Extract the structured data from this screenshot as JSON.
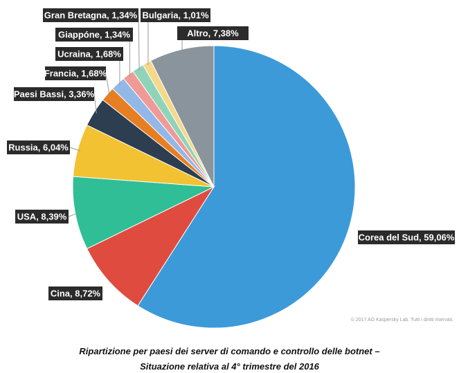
{
  "chart_data": {
    "type": "pie",
    "title": "",
    "start_angle_deg": 0,
    "direction": "clockwise",
    "slices": [
      {
        "label": "Corea del Sud, 59,06%",
        "value": 59.06,
        "color": "#3d9ad9"
      },
      {
        "label": "Cina, 8,72%",
        "value": 8.72,
        "color": "#e04b3f"
      },
      {
        "label": "USA, 8,39%",
        "value": 8.39,
        "color": "#2fbe96"
      },
      {
        "label": "Russia, 6,04%",
        "value": 6.04,
        "color": "#f2c232"
      },
      {
        "label": "Paesi Bassi, 3,36%",
        "value": 3.36,
        "color": "#2c3e50"
      },
      {
        "label": "Francia, 1,68%",
        "value": 1.68,
        "color": "#e67e22"
      },
      {
        "label": "Ucraina, 1,68%",
        "value": 1.68,
        "color": "#93b8e8"
      },
      {
        "label": "Giappóne, 1,34%",
        "value": 1.34,
        "color": "#ef9a96"
      },
      {
        "label": "Gran Bretagna, 1,34%",
        "value": 1.34,
        "color": "#8fd4b8"
      },
      {
        "label": "Bulgaria, 1,01%",
        "value": 1.01,
        "color": "#f5d88a"
      },
      {
        "label": "Altro, 7,38%",
        "value": 7.38,
        "color": "#8a949c"
      }
    ]
  },
  "copyright": "© 2017 AO Kaspersky Lab. Tutti i diritti riservati.",
  "caption": {
    "line1": "Ripartizione per paesi dei server di comando e controllo delle botnet –",
    "line2": "Situazione relativa al 4° trimestre del 2016"
  }
}
